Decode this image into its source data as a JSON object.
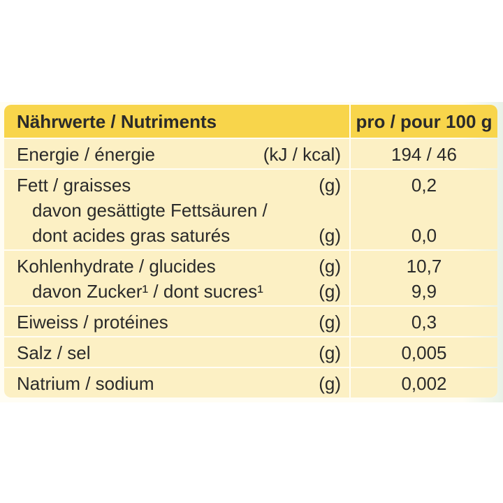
{
  "table": {
    "header": [
      "Nährwerte / Nutriments",
      "pro / pour 100 g"
    ],
    "rows": [
      {
        "lines": [
          {
            "label": "Energie / énergie",
            "unit": "(kJ / kcal)",
            "value": "194 / 46"
          }
        ]
      },
      {
        "lines": [
          {
            "label": "Fett / graisses",
            "unit": "(g)",
            "value": "0,2"
          },
          {
            "label": "davon gesättigte Fettsäuren /",
            "indent": true
          },
          {
            "label": "dont acides gras saturés",
            "unit": "(g)",
            "value": "0,0",
            "indent": true
          }
        ]
      },
      {
        "lines": [
          {
            "label": "Kohlenhydrate / glucides",
            "unit": "(g)",
            "value": "10,7"
          },
          {
            "label": "davon Zucker¹ / dont sucres¹",
            "unit": "(g)",
            "value": "9,9",
            "indent": true
          }
        ]
      },
      {
        "lines": [
          {
            "label": "Eiweiss / protéines",
            "unit": "(g)",
            "value": "0,3"
          }
        ]
      },
      {
        "lines": [
          {
            "label": "Salz / sel",
            "unit": "(g)",
            "value": "0,005"
          }
        ]
      },
      {
        "lines": [
          {
            "label": "Natrium / sodium",
            "unit": "(g)",
            "value": "0,002"
          }
        ]
      }
    ]
  }
}
